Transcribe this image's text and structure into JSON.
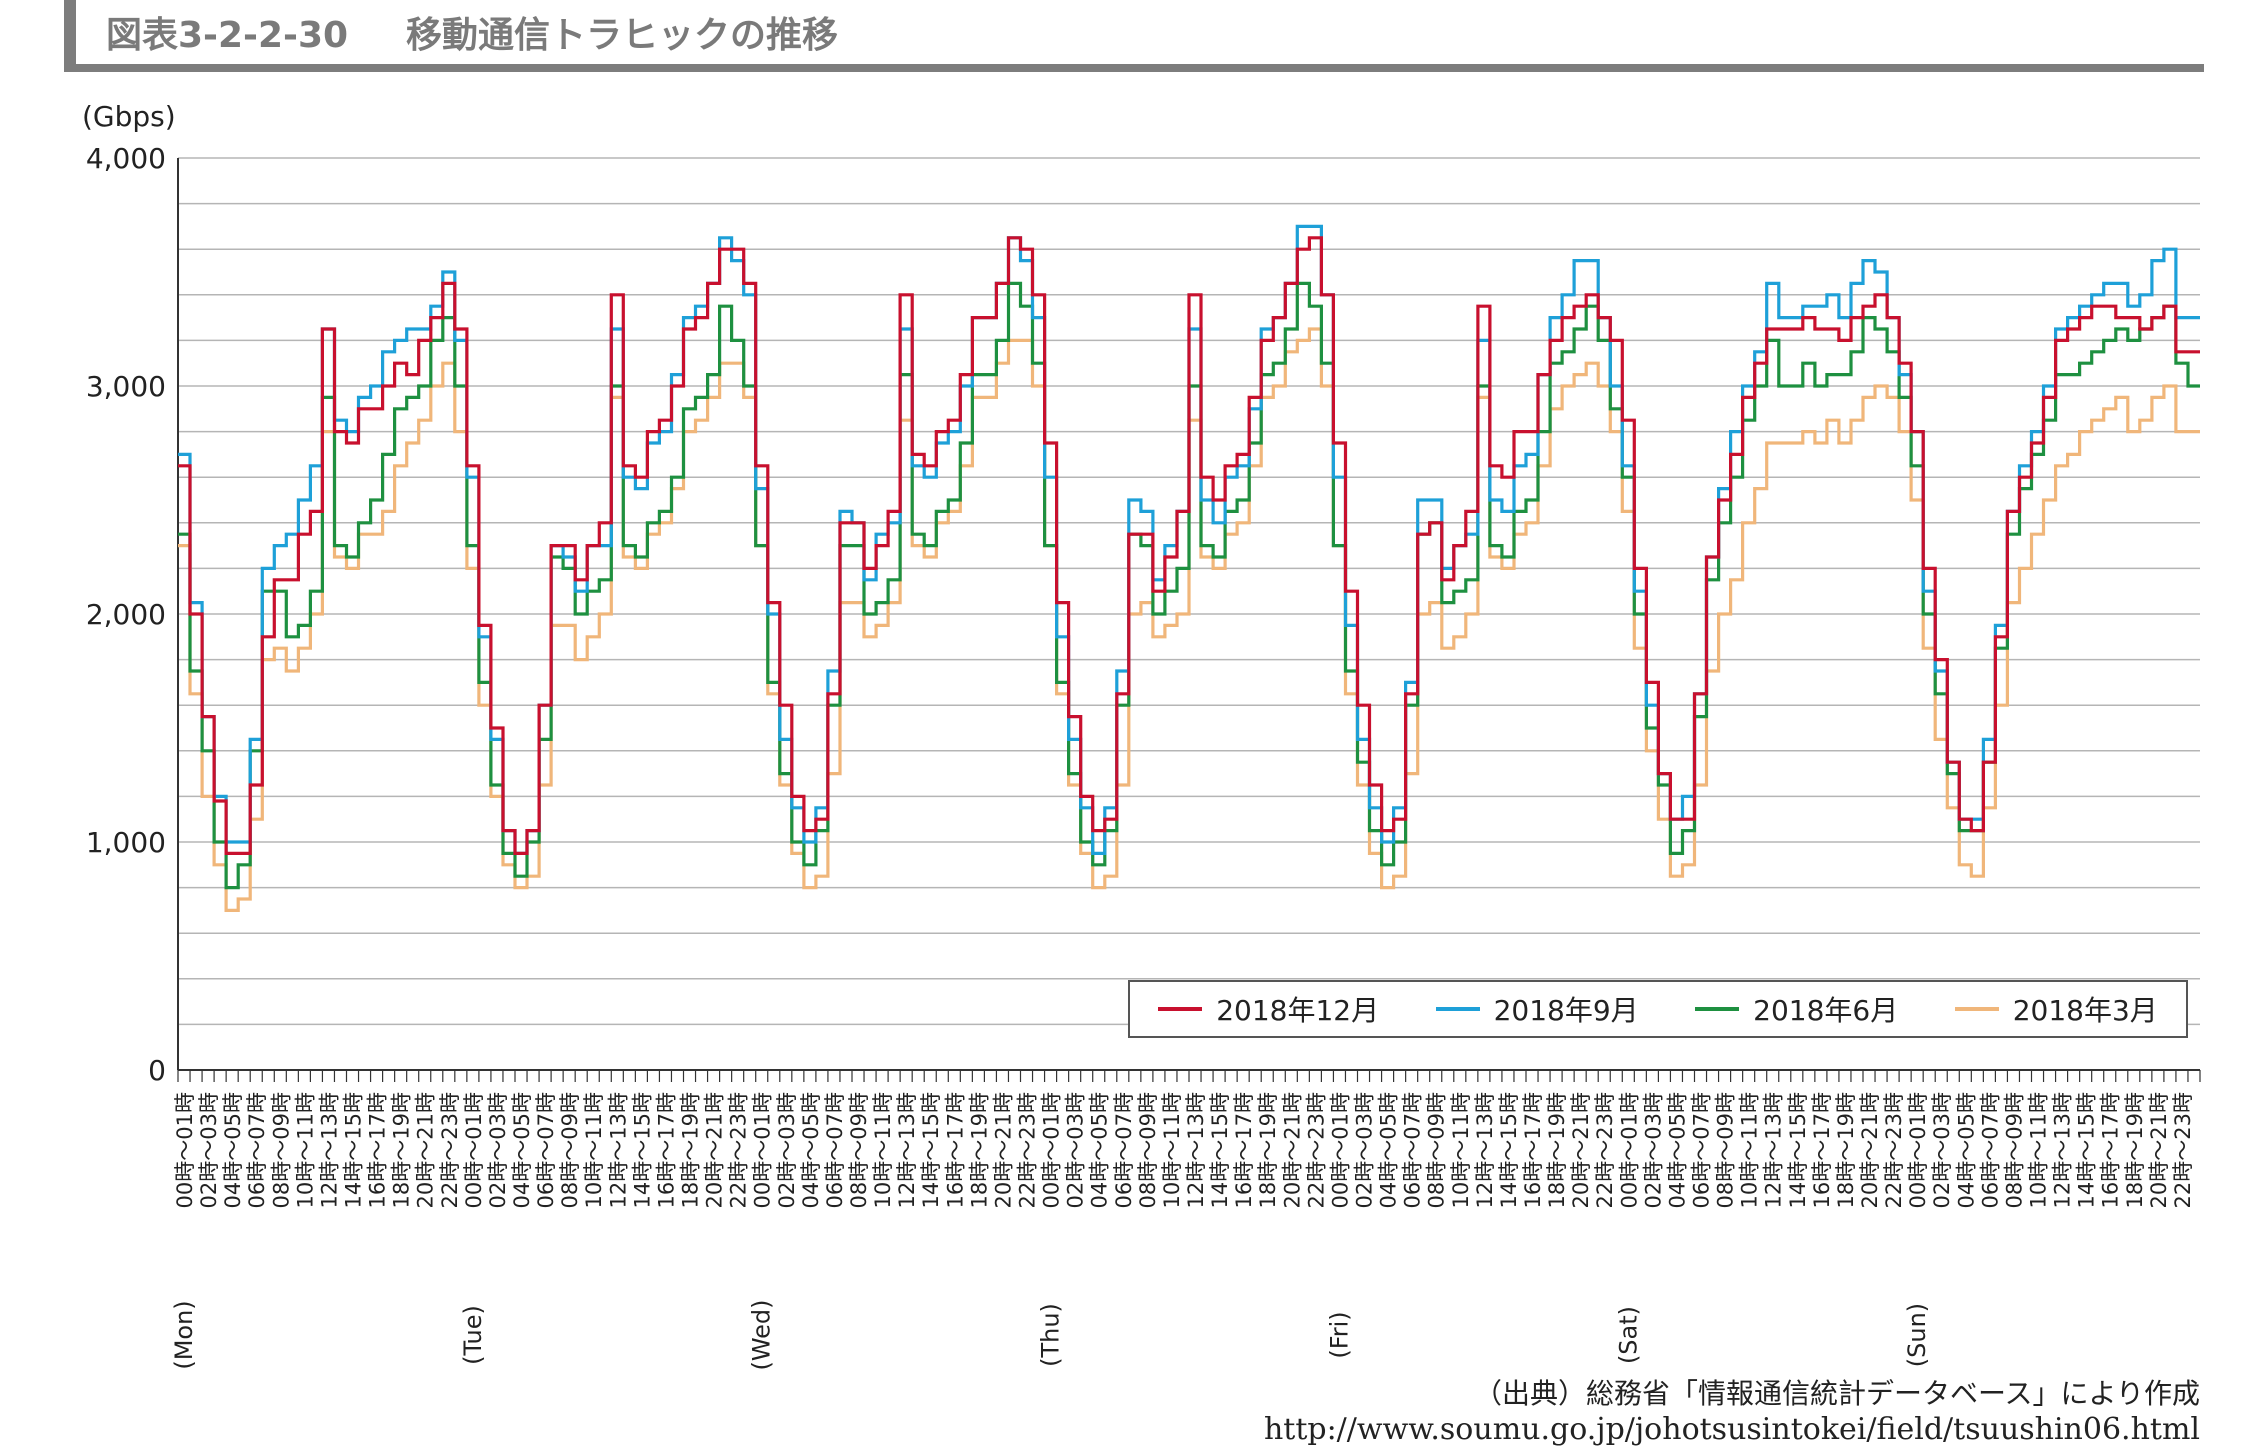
{
  "header": {
    "figure_number": "図表3-2-2-30",
    "title": "移動通信トラヒックの推移"
  },
  "source": {
    "note": "（出典）総務省「情報通信統計データベース」により作成",
    "url": "http://www.soumu.go.jp/johotsusintokei/field/tsuushin06.html"
  },
  "colors": {
    "dec": "#c8102e",
    "sep": "#1ea0d8",
    "jun": "#1e9040",
    "mar": "#f0b67a",
    "grid": "#b5b5b5",
    "axis": "#333333"
  },
  "chart_data": {
    "type": "line",
    "ylabel": "(Gbps)",
    "ylim": [
      0,
      4000
    ],
    "yticks": [
      0,
      1000,
      2000,
      3000,
      4000
    ],
    "ytick_labels": [
      "0",
      "1,000",
      "2,000",
      "3,000",
      "4,000"
    ],
    "day_labels": [
      "(Mon)",
      "(Tue)",
      "(Wed)",
      "(Thu)",
      "(Fri)",
      "(Sat)",
      "(Sun)"
    ],
    "hour_labels": [
      "00時〜01時",
      "02時〜03時",
      "04時〜05時",
      "06時〜07時",
      "08時〜09時",
      "10時〜11時",
      "12時〜13時",
      "14時〜15時",
      "16時〜17時",
      "18時〜19時",
      "20時〜21時",
      "22時〜23時"
    ],
    "legend_position": "bottom-right",
    "grid": true,
    "series": [
      {
        "name": "2018年12月",
        "color_key": "dec",
        "values": [
          2650,
          2000,
          1550,
          1180,
          950,
          950,
          1250,
          1900,
          2150,
          2150,
          2350,
          2450,
          3250,
          2800,
          2750,
          2900,
          2900,
          3000,
          3100,
          3050,
          3200,
          3300,
          3450,
          3250,
          2650,
          1950,
          1500,
          1050,
          950,
          1050,
          1600,
          2300,
          2300,
          2150,
          2300,
          2400,
          3400,
          2650,
          2600,
          2800,
          2850,
          3000,
          3250,
          3300,
          3450,
          3600,
          3600,
          3450,
          2650,
          2050,
          1600,
          1200,
          1050,
          1100,
          1650,
          2400,
          2400,
          2200,
          2300,
          2450,
          3400,
          2700,
          2650,
          2800,
          2850,
          3050,
          3300,
          3300,
          3450,
          3650,
          3600,
          3400,
          2750,
          2050,
          1550,
          1200,
          1050,
          1100,
          1650,
          2350,
          2350,
          2100,
          2250,
          2450,
          3400,
          2600,
          2500,
          2650,
          2700,
          2950,
          3200,
          3300,
          3450,
          3600,
          3650,
          3400,
          2750,
          2100,
          1600,
          1250,
          1050,
          1100,
          1650,
          2350,
          2400,
          2150,
          2300,
          2450,
          3350,
          2650,
          2600,
          2800,
          2800,
          3050,
          3200,
          3300,
          3350,
          3400,
          3300,
          3200,
          2850,
          2200,
          1700,
          1300,
          1100,
          1100,
          1650,
          2250,
          2500,
          2700,
          2950,
          3100,
          3250,
          3250,
          3250,
          3300,
          3250,
          3250,
          3200,
          3300,
          3350,
          3400,
          3300,
          3100,
          2800,
          2200,
          1800,
          1350,
          1100,
          1050,
          1350,
          1900,
          2450,
          2600,
          2750,
          2950,
          3200,
          3250,
          3300,
          3350,
          3350,
          3300,
          3300,
          3250,
          3300,
          3350,
          3150,
          3150
        ]
      },
      {
        "name": "2018年9月",
        "color_key": "sep",
        "values": [
          2700,
          2050,
          1550,
          1200,
          1000,
          1000,
          1450,
          2200,
          2300,
          2350,
          2500,
          2650,
          3250,
          2850,
          2800,
          2950,
          3000,
          3150,
          3200,
          3250,
          3250,
          3350,
          3500,
          3200,
          2600,
          1900,
          1450,
          1050,
          950,
          1050,
          1600,
          2300,
          2250,
          2100,
          2300,
          2300,
          3250,
          2600,
          2550,
          2750,
          2800,
          3050,
          3300,
          3350,
          3450,
          3650,
          3550,
          3400,
          2550,
          2000,
          1450,
          1150,
          1000,
          1150,
          1750,
          2450,
          2400,
          2150,
          2350,
          2400,
          3250,
          2650,
          2600,
          2750,
          2800,
          3000,
          3300,
          3300,
          3450,
          3650,
          3550,
          3300,
          2600,
          1900,
          1450,
          1150,
          950,
          1150,
          1750,
          2500,
          2450,
          2150,
          2300,
          2450,
          3250,
          2500,
          2400,
          2600,
          2650,
          2900,
          3250,
          3300,
          3450,
          3700,
          3700,
          3400,
          2600,
          1950,
          1450,
          1150,
          1000,
          1150,
          1700,
          2500,
          2500,
          2200,
          2300,
          2350,
          3200,
          2500,
          2450,
          2650,
          2700,
          3050,
          3300,
          3400,
          3550,
          3550,
          3300,
          3000,
          2650,
          2100,
          1600,
          1300,
          1100,
          1200,
          1650,
          2250,
          2550,
          2800,
          3000,
          3150,
          3450,
          3300,
          3300,
          3350,
          3350,
          3400,
          3300,
          3450,
          3550,
          3500,
          3300,
          3050,
          2800,
          2100,
          1750,
          1350,
          1100,
          1100,
          1450,
          1950,
          2450,
          2650,
          2800,
          3000,
          3250,
          3300,
          3350,
          3400,
          3450,
          3450,
          3350,
          3400,
          3550,
          3600,
          3300,
          3300
        ]
      },
      {
        "name": "2018年6月",
        "color_key": "jun",
        "values": [
          2350,
          1750,
          1400,
          1000,
          800,
          900,
          1400,
          2100,
          2100,
          1900,
          1950,
          2100,
          2950,
          2300,
          2250,
          2400,
          2500,
          2700,
          2900,
          2950,
          3000,
          3200,
          3300,
          3000,
          2300,
          1700,
          1250,
          950,
          850,
          1000,
          1450,
          2250,
          2200,
          2000,
          2100,
          2150,
          3000,
          2300,
          2250,
          2400,
          2450,
          2600,
          2900,
          2950,
          3050,
          3350,
          3200,
          3000,
          2300,
          1700,
          1300,
          1000,
          900,
          1050,
          1600,
          2300,
          2300,
          2000,
          2050,
          2150,
          3050,
          2350,
          2300,
          2450,
          2500,
          2750,
          3050,
          3050,
          3200,
          3450,
          3350,
          3100,
          2300,
          1700,
          1300,
          1000,
          900,
          1050,
          1600,
          2350,
          2300,
          2000,
          2100,
          2200,
          3000,
          2300,
          2250,
          2450,
          2500,
          2750,
          3050,
          3100,
          3250,
          3450,
          3350,
          3100,
          2300,
          1750,
          1350,
          1050,
          900,
          1000,
          1600,
          2350,
          2400,
          2050,
          2100,
          2150,
          3000,
          2300,
          2250,
          2450,
          2500,
          2800,
          3100,
          3150,
          3250,
          3350,
          3200,
          2900,
          2600,
          2000,
          1500,
          1250,
          950,
          1050,
          1550,
          2150,
          2400,
          2600,
          2850,
          3000,
          3200,
          3000,
          3000,
          3100,
          3000,
          3050,
          3050,
          3150,
          3300,
          3250,
          3150,
          2950,
          2650,
          2000,
          1650,
          1300,
          1050,
          1050,
          1350,
          1850,
          2350,
          2550,
          2700,
          2850,
          3050,
          3050,
          3100,
          3150,
          3200,
          3250,
          3200,
          3250,
          3300,
          3350,
          3100,
          3000
        ]
      },
      {
        "name": "2018年3月",
        "color_key": "mar",
        "values": [
          2300,
          1650,
          1200,
          900,
          700,
          750,
          1100,
          1800,
          1850,
          1750,
          1850,
          2000,
          2800,
          2250,
          2200,
          2350,
          2350,
          2450,
          2650,
          2750,
          2850,
          3000,
          3100,
          2800,
          2200,
          1600,
          1200,
          900,
          800,
          850,
          1250,
          1950,
          1950,
          1800,
          1900,
          2000,
          2950,
          2250,
          2200,
          2350,
          2400,
          2550,
          2800,
          2850,
          2950,
          3100,
          3100,
          2950,
          2300,
          1650,
          1250,
          950,
          800,
          850,
          1300,
          2050,
          2050,
          1900,
          1950,
          2050,
          2850,
          2300,
          2250,
          2400,
          2450,
          2650,
          2950,
          2950,
          3100,
          3200,
          3200,
          3000,
          2300,
          1650,
          1250,
          950,
          800,
          850,
          1250,
          2000,
          2050,
          1900,
          1950,
          2000,
          2850,
          2250,
          2200,
          2350,
          2400,
          2650,
          2950,
          3000,
          3150,
          3200,
          3250,
          3000,
          2300,
          1650,
          1250,
          950,
          800,
          850,
          1300,
          2000,
          2050,
          1850,
          1900,
          2000,
          2950,
          2250,
          2200,
          2350,
          2400,
          2650,
          2900,
          3000,
          3050,
          3100,
          3000,
          2800,
          2450,
          1850,
          1400,
          1100,
          850,
          900,
          1250,
          1750,
          2000,
          2150,
          2400,
          2550,
          2750,
          2750,
          2750,
          2800,
          2750,
          2850,
          2750,
          2850,
          2950,
          3000,
          2950,
          2800,
          2500,
          1850,
          1450,
          1150,
          900,
          850,
          1150,
          1600,
          2050,
          2200,
          2350,
          2500,
          2650,
          2700,
          2800,
          2850,
          2900,
          2950,
          2800,
          2850,
          2950,
          3000,
          2800,
          2800
        ]
      }
    ]
  }
}
